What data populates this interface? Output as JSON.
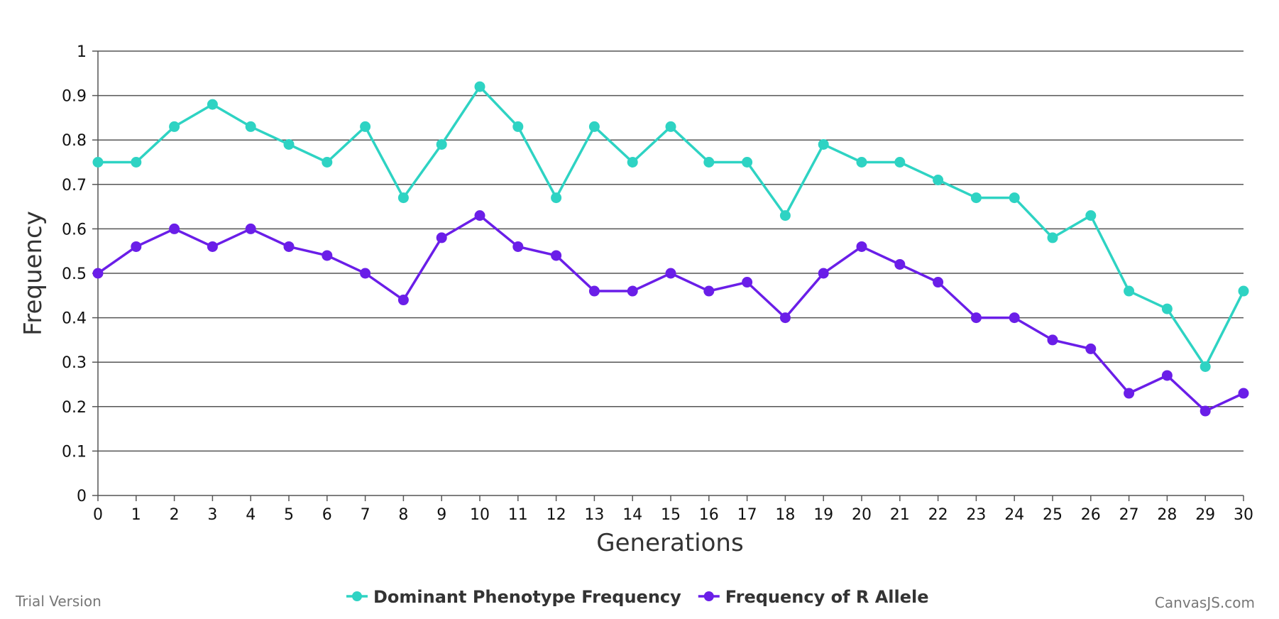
{
  "chart_data": {
    "type": "line",
    "title": "",
    "xlabel": "Generations",
    "ylabel": "Frequency",
    "x": [
      0,
      1,
      2,
      3,
      4,
      5,
      6,
      7,
      8,
      9,
      10,
      11,
      12,
      13,
      14,
      15,
      16,
      17,
      18,
      19,
      20,
      21,
      22,
      23,
      24,
      25,
      26,
      27,
      28,
      29,
      30
    ],
    "xlim": [
      0,
      30
    ],
    "ylim": [
      0,
      1
    ],
    "yticks": [
      "0",
      "0.1",
      "0.2",
      "0.3",
      "0.4",
      "0.5",
      "0.6",
      "0.7",
      "0.8",
      "0.9",
      "1"
    ],
    "xticks": [
      "0",
      "1",
      "2",
      "3",
      "4",
      "5",
      "6",
      "7",
      "8",
      "9",
      "10",
      "11",
      "12",
      "13",
      "14",
      "15",
      "16",
      "17",
      "18",
      "19",
      "20",
      "21",
      "22",
      "23",
      "24",
      "25",
      "26",
      "27",
      "28",
      "29",
      "30"
    ],
    "grid": true,
    "legend_position": "bottom-center",
    "series": [
      {
        "name": "Dominant Phenotype Frequency",
        "color": "#2ed3c3",
        "values": [
          0.75,
          0.75,
          0.83,
          0.88,
          0.83,
          0.79,
          0.75,
          0.83,
          0.67,
          0.79,
          0.92,
          0.83,
          0.67,
          0.83,
          0.75,
          0.83,
          0.75,
          0.75,
          0.63,
          0.79,
          0.75,
          0.75,
          0.71,
          0.67,
          0.67,
          0.58,
          0.63,
          0.46,
          0.42,
          0.29,
          0.46
        ]
      },
      {
        "name": "Frequency of R Allele",
        "color": "#6a1ee8",
        "values": [
          0.5,
          0.56,
          0.6,
          0.56,
          0.6,
          0.56,
          0.54,
          0.5,
          0.44,
          0.58,
          0.63,
          0.56,
          0.54,
          0.46,
          0.46,
          0.5,
          0.46,
          0.48,
          0.4,
          0.5,
          0.56,
          0.52,
          0.48,
          0.4,
          0.4,
          0.35,
          0.33,
          0.23,
          0.27,
          0.19,
          0.23
        ]
      }
    ]
  },
  "watermark": {
    "left": "Trial Version",
    "right": "CanvasJS.com"
  }
}
